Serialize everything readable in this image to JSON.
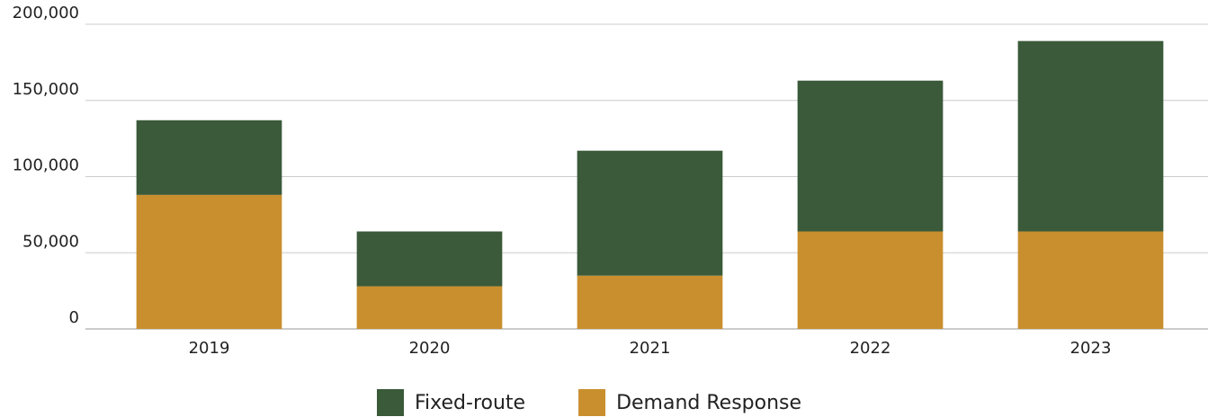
{
  "chart_data": {
    "type": "stacked_bar",
    "categories": [
      "2019",
      "2020",
      "2021",
      "2022",
      "2023"
    ],
    "series": [
      {
        "name": "Demand Response",
        "color": "#c98f2e",
        "values": [
          88000,
          28000,
          35000,
          64000,
          64000
        ]
      },
      {
        "name": "Fixed-route",
        "color": "#3a5a3a",
        "values": [
          49000,
          36000,
          82000,
          99000,
          125000
        ]
      }
    ],
    "ylim": [
      0,
      200000
    ],
    "yticks": [
      0,
      {
        "value": 50000,
        "label": "50,000"
      },
      {
        "value": 100000,
        "label": "100,000"
      },
      {
        "value": 150000,
        "label": "150,000"
      },
      {
        "value": 200000,
        "label": "200,000"
      }
    ],
    "grid": true,
    "legend": "bottom"
  }
}
